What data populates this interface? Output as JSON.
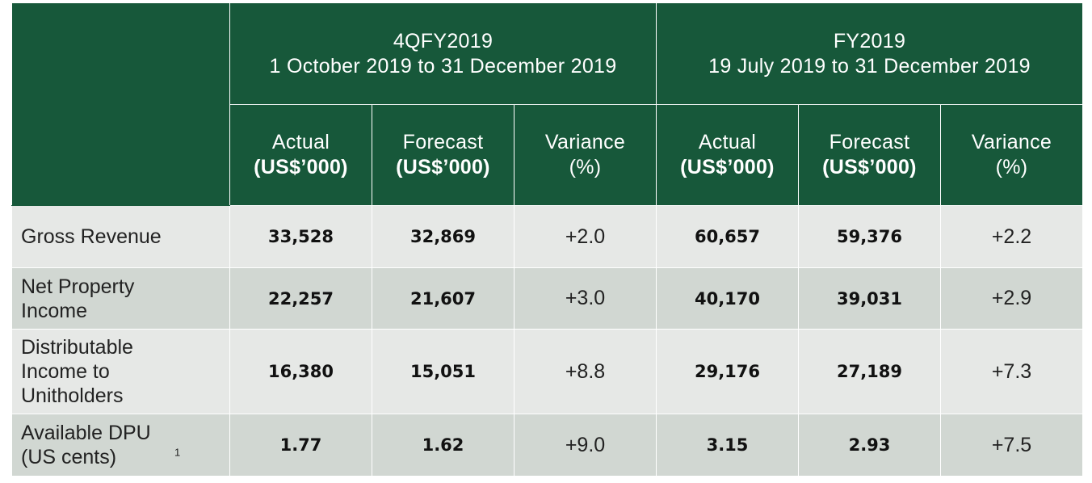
{
  "groups": [
    {
      "title": "4QFY2019",
      "period": "1 October 2019 to 31 December 2019"
    },
    {
      "title": "FY2019",
      "period": "19 July 2019 to 31 December 2019"
    }
  ],
  "columns": {
    "actual": "Actual",
    "forecast": "Forecast",
    "variance": "Variance",
    "unit": "(US$’000)",
    "pct": "(%)"
  },
  "rows": [
    {
      "label": "Gross Revenue",
      "values": [
        "33,528",
        "32,869",
        "+2.0",
        "60,657",
        "59,376",
        "+2.2"
      ]
    },
    {
      "label": "Net Property Income",
      "values": [
        "22,257",
        "21,607",
        "+3.0",
        "40,170",
        "39,031",
        "+2.9"
      ]
    },
    {
      "label": "Distributable Income to Unitholders",
      "values": [
        "16,380",
        "15,051",
        "+8.8",
        "29,176",
        "27,189",
        "+7.3"
      ]
    },
    {
      "label": "Available DPU (US cents)",
      "footnote": "1",
      "values": [
        "1.77",
        "1.62",
        "+9.0",
        "3.15",
        "2.93",
        "+7.5"
      ]
    }
  ]
}
